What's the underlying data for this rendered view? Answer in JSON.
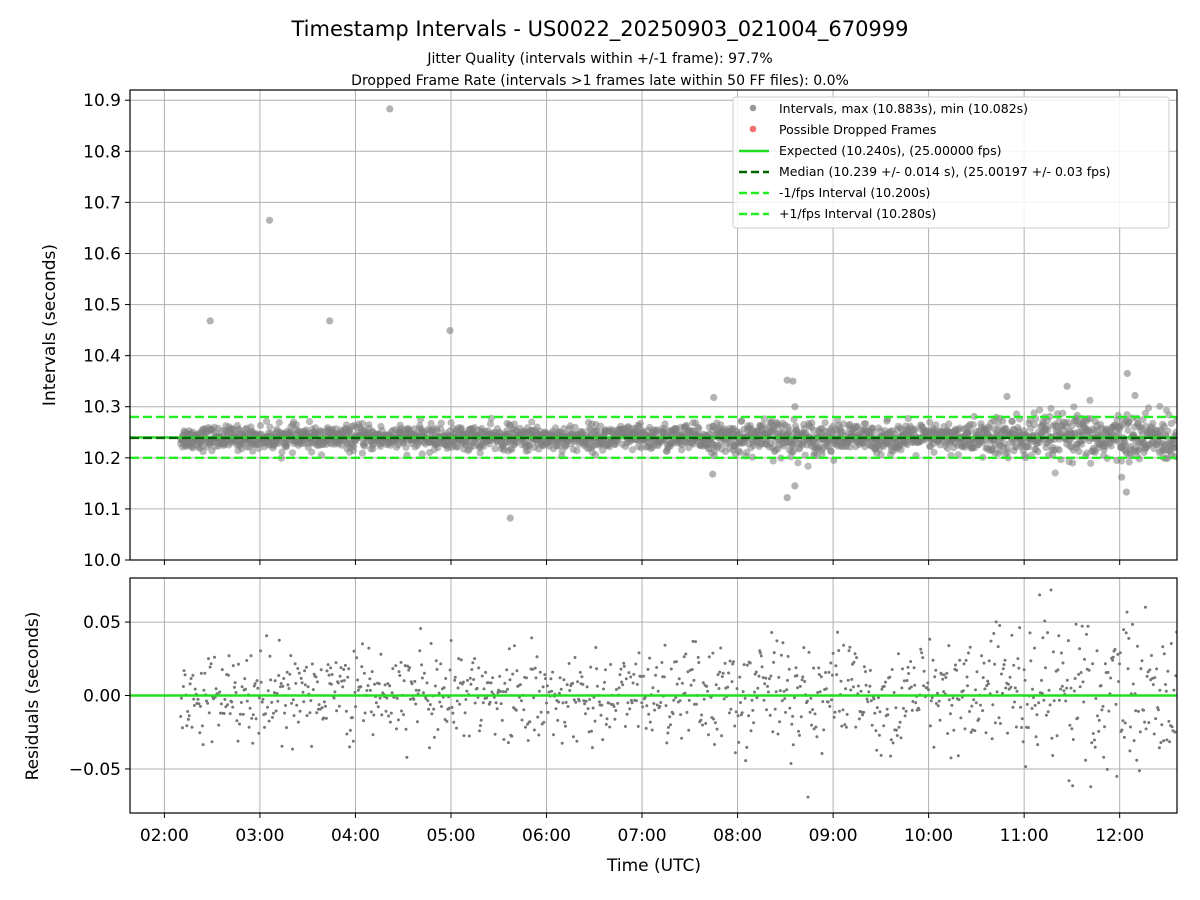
{
  "chart_data": {
    "title": "Timestamp Intervals - US0022_20250903_021004_670999",
    "subtitles": [
      "Jitter Quality (intervals within +/-1 frame): 97.7%",
      "Dropped Frame Rate (intervals >1 frames late within 50 FF files): 0.0%"
    ],
    "xlabel": "Time (UTC)",
    "x_tick_labels": [
      "02:00",
      "03:00",
      "04:00",
      "05:00",
      "06:00",
      "07:00",
      "08:00",
      "09:00",
      "10:00",
      "11:00",
      "12:00"
    ],
    "x_tick_hours": [
      2,
      3,
      4,
      5,
      6,
      7,
      8,
      9,
      10,
      11,
      12
    ],
    "xlim_hours": [
      1.64,
      12.6
    ],
    "grid": true,
    "panels": [
      {
        "type": "scatter",
        "ylabel": "Intervals (seconds)",
        "ylim": [
          10.0,
          10.92
        ],
        "y_ticks": [
          10.0,
          10.1,
          10.2,
          10.3,
          10.4,
          10.5,
          10.6,
          10.7,
          10.8,
          10.9
        ],
        "y_tick_labels": [
          "10.0",
          "10.1",
          "10.2",
          "10.3",
          "10.4",
          "10.5",
          "10.6",
          "10.7",
          "10.8",
          "10.9"
        ],
        "legend_position": "top-right",
        "legend": [
          {
            "label": "Intervals, max (10.883s), min (10.082s)",
            "kind": "dot",
            "color": "#999999"
          },
          {
            "label": "Possible Dropped Frames",
            "kind": "dot",
            "color": "#f07070"
          },
          {
            "label": "Expected (10.240s), (25.00000 fps)",
            "kind": "line",
            "color": "#22dd22"
          },
          {
            "label": "Median (10.239 +/- 0.014 s), (25.00197 +/- 0.03 fps)",
            "kind": "dash",
            "color": "#006400"
          },
          {
            "label": "-1/fps Interval (10.200s)",
            "kind": "dash",
            "color": "#22ee22"
          },
          {
            "label": "+1/fps Interval (10.280s)",
            "kind": "dash",
            "color": "#22ee22"
          }
        ],
        "reference_lines": [
          {
            "y": 10.24,
            "style": "solid",
            "color": "#22dd22"
          },
          {
            "y": 10.239,
            "style": "dashed",
            "color": "#006400"
          },
          {
            "y": 10.2,
            "style": "dashed",
            "color": "#22ee22"
          },
          {
            "y": 10.28,
            "style": "dashed",
            "color": "#22ee22"
          }
        ],
        "outliers": [
          {
            "x": 2.48,
            "y": 10.468
          },
          {
            "x": 3.1,
            "y": 10.665
          },
          {
            "x": 3.73,
            "y": 10.468
          },
          {
            "x": 4.36,
            "y": 10.883
          },
          {
            "x": 4.99,
            "y": 10.449
          },
          {
            "x": 5.62,
            "y": 10.082
          },
          {
            "x": 7.75,
            "y": 10.318
          },
          {
            "x": 7.74,
            "y": 10.168
          },
          {
            "x": 8.52,
            "y": 10.352
          },
          {
            "x": 8.58,
            "y": 10.35
          },
          {
            "x": 8.6,
            "y": 10.145
          },
          {
            "x": 8.52,
            "y": 10.122
          },
          {
            "x": 8.6,
            "y": 10.3
          },
          {
            "x": 10.82,
            "y": 10.32
          },
          {
            "x": 11.45,
            "y": 10.34
          },
          {
            "x": 12.08,
            "y": 10.365
          },
          {
            "x": 12.02,
            "y": 10.162
          },
          {
            "x": 12.07,
            "y": 10.133
          },
          {
            "x": 12.16,
            "y": 10.322
          }
        ],
        "bulk_x_range": [
          2.17,
          12.6
        ],
        "bulk_center": 10.239,
        "bulk_spread_profile": [
          {
            "x": 2.17,
            "sd": 0.011
          },
          {
            "x": 5.0,
            "sd": 0.012
          },
          {
            "x": 7.7,
            "sd": 0.013
          },
          {
            "x": 8.5,
            "sd": 0.018
          },
          {
            "x": 9.2,
            "sd": 0.014
          },
          {
            "x": 10.3,
            "sd": 0.014
          },
          {
            "x": 10.8,
            "sd": 0.022
          },
          {
            "x": 12.6,
            "sd": 0.025
          }
        ]
      },
      {
        "type": "scatter",
        "ylabel": "Residuals (seconds)",
        "ylim": [
          -0.08,
          0.08
        ],
        "y_ticks": [
          -0.05,
          0.0,
          0.05
        ],
        "y_tick_labels": [
          "−0.05",
          "0.00",
          "0.05"
        ],
        "reference_lines": [
          {
            "y": 0.0,
            "style": "solid",
            "color": "#22dd22"
          }
        ],
        "point_color": "#777777"
      }
    ]
  }
}
